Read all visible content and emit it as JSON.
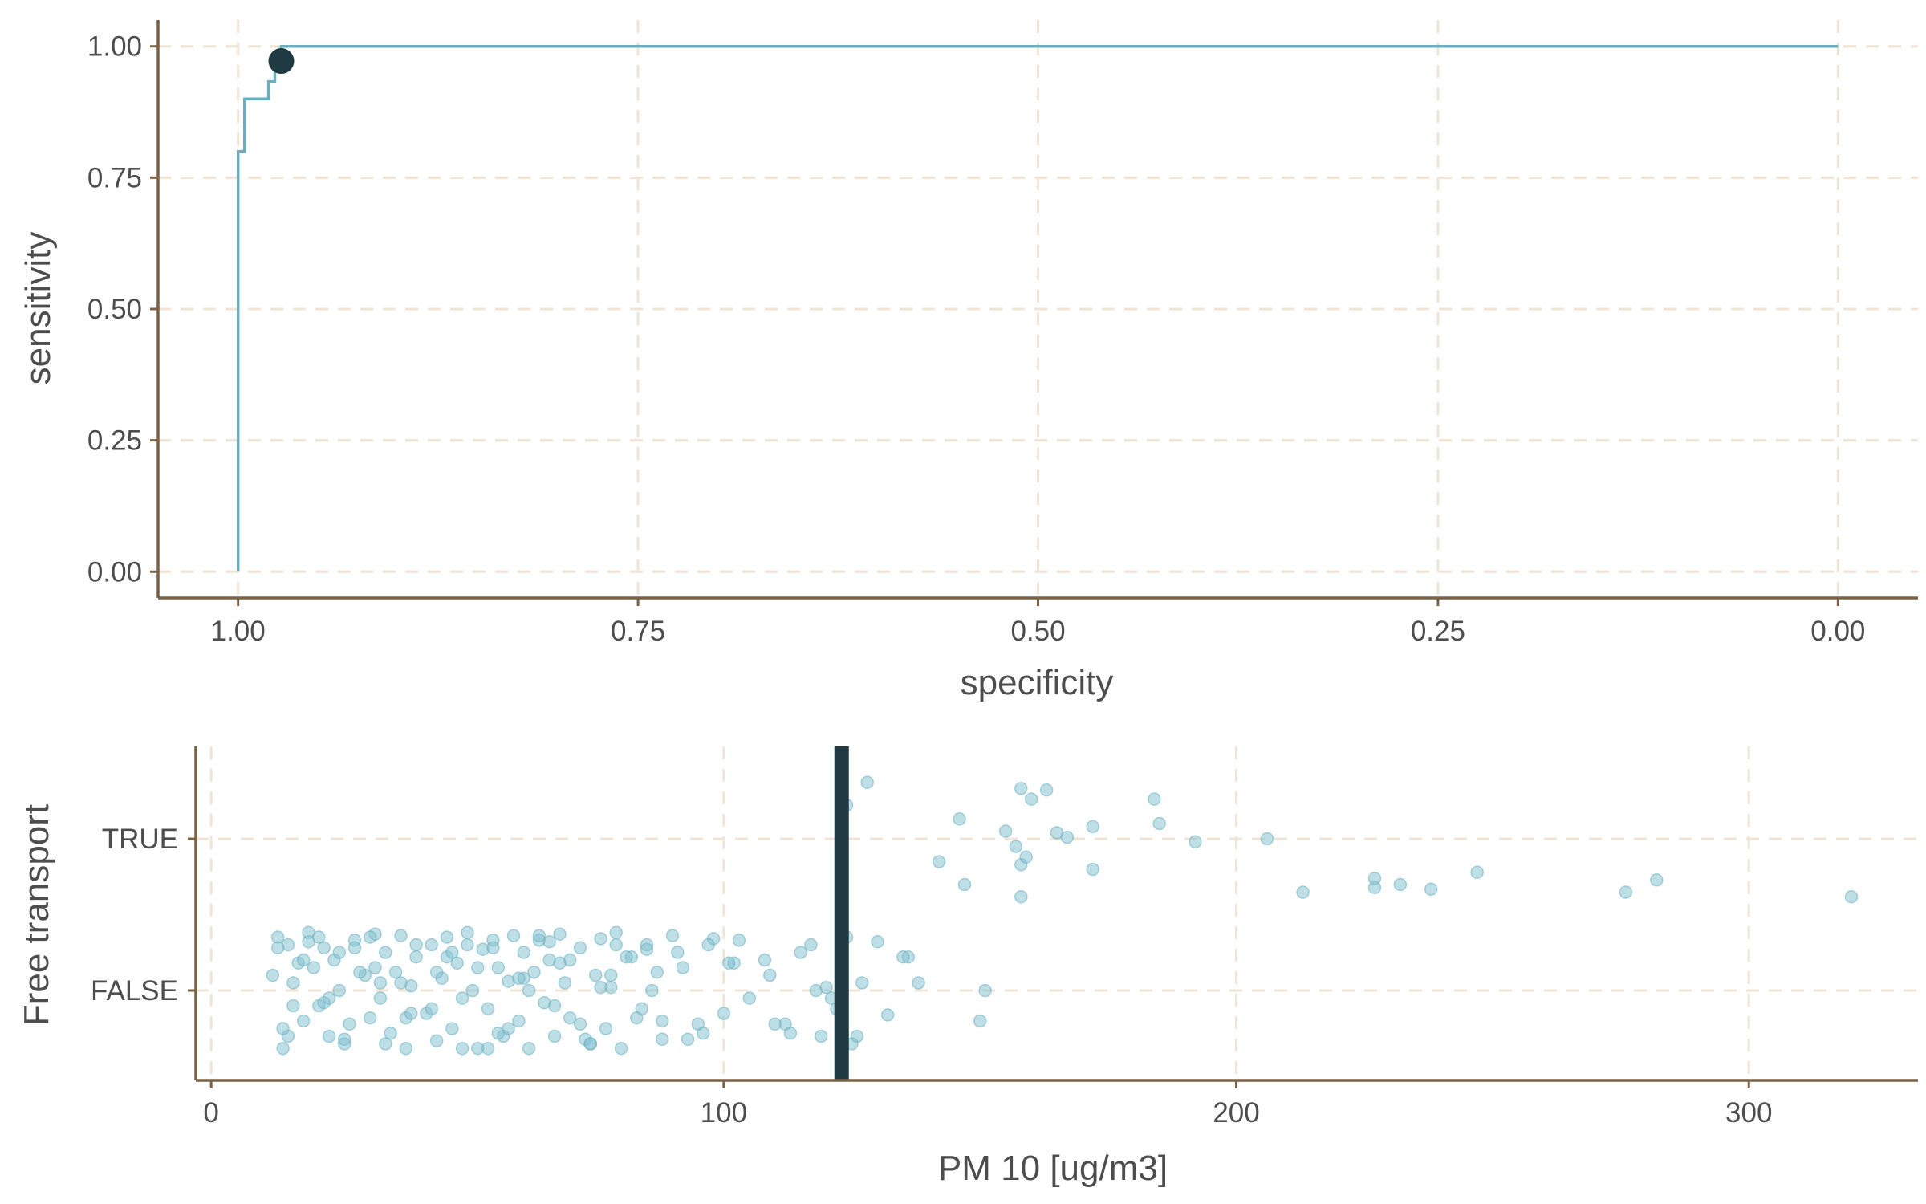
{
  "colors": {
    "curve": "#6aafc0",
    "point_fill": "#7fbfcf",
    "highlight": "#1f3a42",
    "axis": "#7a6247",
    "grid": "#efe4d6",
    "text": "#4d4d4d"
  },
  "chart_data": [
    {
      "type": "line",
      "subtype": "roc-curve",
      "title": "",
      "xlabel": "specificity",
      "ylabel": "sensitivity",
      "x_reversed": true,
      "xlim": [
        1.05,
        -0.05
      ],
      "ylim": [
        -0.05,
        1.05
      ],
      "x_ticks": [
        1.0,
        0.75,
        0.5,
        0.25,
        0.0
      ],
      "x_tick_labels": [
        "1.00",
        "0.75",
        "0.50",
        "0.25",
        "0.00"
      ],
      "y_ticks": [
        0.0,
        0.25,
        0.5,
        0.75,
        1.0
      ],
      "y_tick_labels": [
        "0.00",
        "0.25",
        "0.50",
        "0.75",
        "1.00"
      ],
      "grid": true,
      "series": [
        {
          "specificity": [
            1.0,
            1.0,
            0.996,
            0.996,
            0.981,
            0.981,
            0.977,
            0.977,
            0.973,
            0.973,
            0.0
          ],
          "sensitivity": [
            0.0,
            0.8,
            0.8,
            0.9,
            0.9,
            0.933,
            0.933,
            0.967,
            0.967,
            1.0,
            1.0
          ]
        }
      ],
      "highlight_point": {
        "specificity": 0.973,
        "sensitivity": 0.972
      }
    },
    {
      "type": "scatter",
      "subtype": "jitter",
      "title": "",
      "xlabel": "PM 10 [ug/m3]",
      "ylabel": "Free transport",
      "categories": [
        "FALSE",
        "TRUE"
      ],
      "xlim": [
        -3,
        333
      ],
      "x_ticks": [
        0,
        100,
        200,
        300
      ],
      "x_tick_labels": [
        "0",
        "100",
        "200",
        "300"
      ],
      "grid": true,
      "threshold": 123,
      "series": [
        {
          "name": "TRUE",
          "x": [
            124,
            128,
            142,
            146,
            147,
            155,
            157,
            158,
            158,
            158,
            159,
            160,
            163,
            165,
            167,
            172,
            172,
            184,
            185,
            192,
            206,
            213,
            227,
            227,
            232,
            238,
            247,
            276,
            282,
            320
          ],
          "jitter": [
            0.22,
            0.37,
            -0.15,
            0.13,
            -0.3,
            0.05,
            -0.05,
            0.33,
            -0.38,
            -0.17,
            -0.12,
            0.26,
            0.32,
            0.04,
            0.01,
            -0.2,
            0.08,
            0.26,
            0.1,
            -0.02,
            0.0,
            -0.35,
            -0.32,
            -0.26,
            -0.3,
            -0.33,
            -0.22,
            -0.35,
            -0.27,
            -0.38
          ]
        },
        {
          "name": "FALSE",
          "x": [
            12,
            13,
            14,
            15,
            16,
            18,
            19,
            20,
            21,
            22,
            23,
            24,
            25,
            26,
            28,
            30,
            31,
            32,
            33,
            34,
            35,
            36,
            37,
            38,
            39,
            40,
            42,
            43,
            44,
            45,
            46,
            47,
            48,
            49,
            50,
            51,
            52,
            53,
            54,
            55,
            56,
            57,
            58,
            59,
            60,
            61,
            62,
            63,
            64,
            65,
            66,
            67,
            68,
            69,
            70,
            72,
            74,
            75,
            76,
            77,
            78,
            79,
            80,
            82,
            84,
            85,
            86,
            88,
            90,
            92,
            95,
            98,
            100,
            102,
            105,
            108,
            112,
            115,
            118,
            120,
            122,
            124,
            126,
            130,
            132,
            136,
            138,
            150,
            151,
            13,
            15,
            17,
            19,
            22,
            25,
            27,
            29,
            31,
            34,
            37,
            40,
            43,
            46,
            49,
            52,
            55,
            58,
            61,
            64,
            67,
            70,
            73,
            76,
            79,
            83,
            87,
            91,
            96,
            103,
            110,
            117,
            121,
            125,
            14,
            18,
            23,
            28,
            33,
            38,
            44,
            50,
            56,
            62,
            68,
            74,
            81,
            88,
            97,
            109,
            119,
            135,
            16,
            21,
            26,
            32,
            39,
            47,
            54,
            60,
            66,
            72,
            78,
            85,
            93,
            101,
            113,
            127
          ],
          "jitter": [
            0.1,
            0.35,
            -0.38,
            0.3,
            0.05,
            -0.2,
            0.38,
            0.15,
            -0.1,
            0.28,
            -0.3,
            0.2,
            0.0,
            -0.35,
            0.33,
            0.1,
            -0.18,
            0.37,
            -0.05,
            0.25,
            -0.28,
            0.12,
            0.36,
            -0.38,
            0.03,
            0.22,
            -0.15,
            0.3,
            -0.33,
            0.08,
            0.35,
            -0.25,
            0.18,
            -0.05,
            0.38,
            0.0,
            -0.38,
            0.27,
            -0.12,
            0.33,
            0.15,
            -0.3,
            0.06,
            0.36,
            -0.2,
            0.25,
            -0.38,
            0.12,
            0.33,
            -0.08,
            0.2,
            -0.3,
            0.37,
            0.05,
            -0.18,
            0.28,
            -0.35,
            0.1,
            0.34,
            -0.25,
            0.02,
            0.38,
            -0.38,
            0.22,
            -0.12,
            0.3,
            0.0,
            -0.32,
            0.36,
            0.15,
            -0.22,
            0.34,
            -0.15,
            0.18,
            -0.05,
            0.2,
            -0.22,
            0.25,
            0.0,
            0.02,
            -0.12,
            0.35,
            -0.3,
            0.32,
            -0.16,
            0.22,
            0.05,
            -0.2,
            0.0,
            0.28,
            -0.3,
            0.18,
            0.32,
            -0.08,
            0.25,
            -0.22,
            0.12,
            0.35,
            -0.35,
            0.05,
            0.3,
            -0.12,
            0.22,
            -0.38,
            0.15,
            0.28,
            -0.25,
            0.08,
            0.36,
            -0.1,
            0.2,
            -0.32,
            0.02,
            0.3,
            -0.18,
            0.12,
            0.25,
            -0.28,
            0.33,
            -0.22,
            0.3,
            -0.05,
            -0.35,
            -0.25,
            0.2,
            -0.05,
            0.28,
            0.05,
            -0.18,
            0.12,
            0.3,
            -0.28,
            0.0,
            0.18,
            -0.35,
            0.22,
            -0.2,
            0.3,
            0.1,
            -0.3,
            0.22,
            -0.1,
            0.35,
            -0.32,
            0.15,
            -0.15,
            0.25,
            -0.38,
            0.08,
            0.32,
            -0.22,
            0.1,
            0.27,
            -0.32,
            0.18,
            -0.28,
            0.05
          ]
        }
      ]
    }
  ]
}
